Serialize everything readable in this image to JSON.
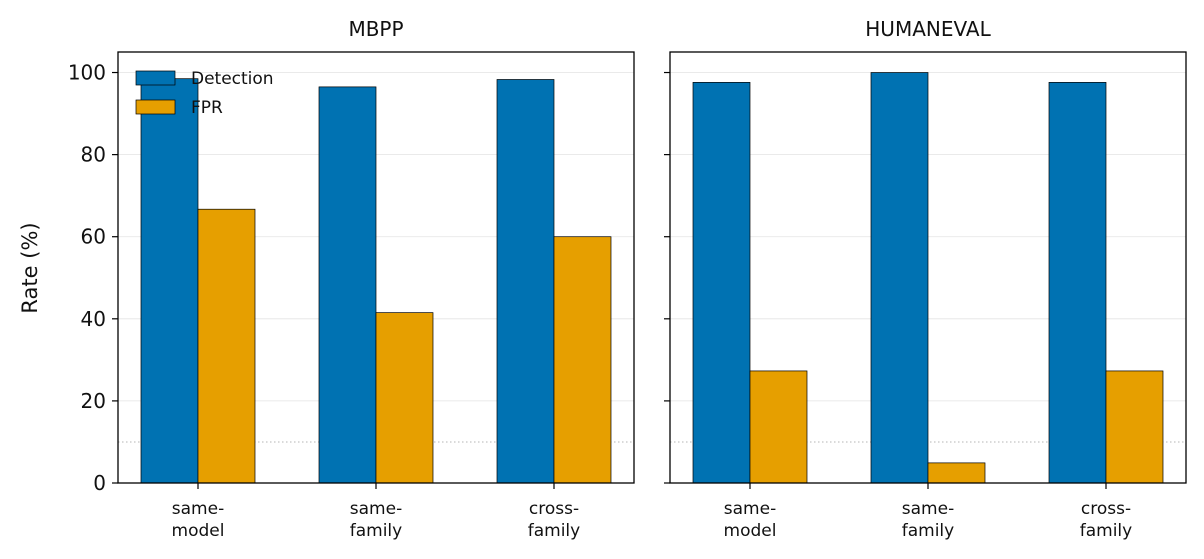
{
  "chart_data": {
    "type": "bar",
    "ylabel": "Rate (%)",
    "ylim": [
      0,
      105
    ],
    "yticks": [
      "0",
      "20",
      "40",
      "60",
      "80",
      "100"
    ],
    "grid": "y",
    "reference_line": 10,
    "legend": {
      "placement": "top-left",
      "entries": [
        {
          "name": "Detection",
          "color": "#0072B2"
        },
        {
          "name": "FPR",
          "color": "#E69F00"
        }
      ]
    },
    "categories": [
      [
        "same-",
        "model"
      ],
      [
        "same-",
        "family"
      ],
      [
        "cross-",
        "family"
      ]
    ],
    "panels": [
      {
        "title": "MBPP",
        "series": [
          {
            "name": "Detection",
            "color": "#0072B2",
            "values": [
              98.5,
              96.5,
              98.3
            ]
          },
          {
            "name": "FPR",
            "color": "#E69F00",
            "values": [
              66.7,
              41.5,
              60.0
            ]
          }
        ]
      },
      {
        "title": "HUMANEVAL",
        "series": [
          {
            "name": "Detection",
            "color": "#0072B2",
            "values": [
              97.6,
              100.0,
              97.6
            ]
          },
          {
            "name": "FPR",
            "color": "#E69F00",
            "values": [
              27.3,
              4.9,
              27.3
            ]
          }
        ]
      }
    ]
  }
}
